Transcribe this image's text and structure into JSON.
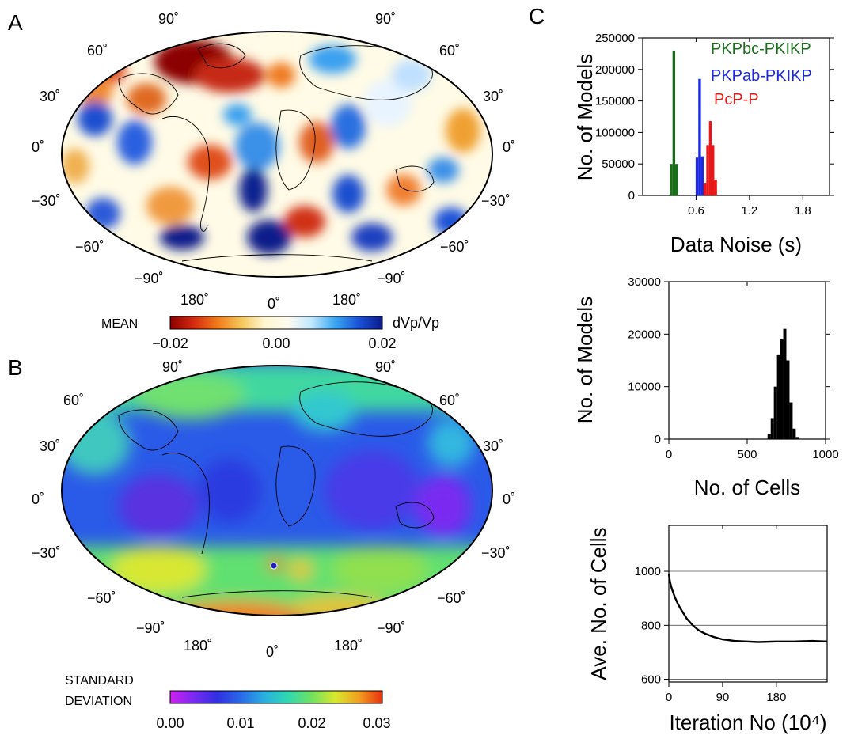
{
  "panels": {
    "a": {
      "letter": "A",
      "lat_labels_left": [
        "90˚",
        "60˚",
        "30˚",
        "0˚",
        "−30˚",
        "−60˚",
        "−90˚"
      ],
      "lat_labels_right": [
        "90˚",
        "60˚",
        "30˚",
        "0˚",
        "−30˚",
        "−60˚",
        "−90˚"
      ],
      "lon_labels": [
        "180˚",
        "0˚",
        "180˚"
      ],
      "colorbar": {
        "label": "MEAN",
        "unit": "dVp/Vp",
        "ticks": [
          "−0.02",
          "0.00",
          "0.02"
        ],
        "colors": [
          "#8b0000",
          "#d42a10",
          "#f07a1a",
          "#f5c55a",
          "#fff6d0",
          "#fffaf0",
          "#bfe8ff",
          "#3aa6f0",
          "#1a52d8",
          "#0a1a8a"
        ]
      }
    },
    "b": {
      "letter": "B",
      "lat_labels_left": [
        "90˚",
        "60˚",
        "30˚",
        "0˚",
        "−30˚",
        "−60˚",
        "−90˚"
      ],
      "lat_labels_right": [
        "90˚",
        "60˚",
        "30˚",
        "0˚",
        "−30˚",
        "−60˚",
        "−90˚"
      ],
      "lon_labels": [
        "180˚",
        "0˚",
        "180˚"
      ],
      "colorbar": {
        "label_line1": "STANDARD",
        "label_line2": "DEVIATION",
        "ticks": [
          "0.00",
          "0.01",
          "0.02",
          "0.03"
        ],
        "colors": [
          "#d020f0",
          "#7a2af0",
          "#3030e0",
          "#2a6ae8",
          "#2ab0e0",
          "#30d8b0",
          "#70e060",
          "#d8e830",
          "#f0a020",
          "#e83010"
        ]
      }
    },
    "c": {
      "letter": "C"
    }
  },
  "chart_data": [
    {
      "type": "bar",
      "panel": "C-top",
      "xlabel": "Data Noise (s)",
      "ylabel": "No. of Models",
      "xlim": [
        0,
        2.1
      ],
      "ylim": [
        0,
        250000
      ],
      "x_ticks": [
        "0.6",
        "1.2",
        "1.8"
      ],
      "x_tick_values": [
        0.6,
        1.2,
        1.8
      ],
      "y_ticks": [
        "0",
        "50000",
        "100000",
        "150000",
        "200000",
        "250000"
      ],
      "y_tick_values": [
        0,
        50000,
        100000,
        150000,
        200000,
        250000
      ],
      "series": [
        {
          "name": "PKPbc-PKIKP",
          "color": "#1a6e1a",
          "x": [
            0.32,
            0.35,
            0.38
          ],
          "values": [
            50000,
            230000,
            50000
          ]
        },
        {
          "name": "PKPab-PKIKP",
          "color": "#1a2ae0",
          "x": [
            0.61,
            0.64,
            0.67
          ],
          "values": [
            60000,
            185000,
            62000
          ]
        },
        {
          "name": "PcP-P",
          "color": "#e81818",
          "x": [
            0.7,
            0.73,
            0.76,
            0.79,
            0.82
          ],
          "values": [
            20000,
            80000,
            118000,
            80000,
            25000
          ]
        }
      ]
    },
    {
      "type": "bar",
      "panel": "C-middle",
      "xlabel": "No. of Cells",
      "ylabel": "No. of Models",
      "xlim": [
        0,
        1000
      ],
      "ylim": [
        0,
        30000
      ],
      "x_ticks": [
        "0",
        "500",
        "1000"
      ],
      "x_tick_values": [
        0,
        500,
        1000
      ],
      "y_ticks": [
        "0",
        "10000",
        "20000",
        "30000"
      ],
      "y_tick_values": [
        0,
        10000,
        20000,
        30000
      ],
      "series": [
        {
          "name": "",
          "color": "#000000",
          "x": [
            640,
            660,
            680,
            700,
            720,
            740,
            760,
            780,
            800,
            820
          ],
          "values": [
            1000,
            4000,
            10000,
            16000,
            19000,
            21000,
            15000,
            7000,
            2000,
            400
          ]
        }
      ]
    },
    {
      "type": "line",
      "panel": "C-bottom",
      "xlabel": "Iteration No (10⁴)",
      "ylabel": "Ave. No. of Cells",
      "xlim": [
        0,
        265
      ],
      "ylim": [
        590,
        1170
      ],
      "x_ticks": [
        "0",
        "90",
        "180"
      ],
      "x_tick_values": [
        0,
        90,
        180
      ],
      "y_ticks": [
        "600",
        "800",
        "1000"
      ],
      "y_tick_values": [
        600,
        800,
        1000
      ],
      "series": [
        {
          "name": "",
          "color": "#000000",
          "x": [
            0,
            2,
            5,
            10,
            15,
            20,
            30,
            40,
            50,
            60,
            75,
            90,
            110,
            130,
            150,
            180,
            210,
            240,
            265
          ],
          "y": [
            990,
            960,
            935,
            905,
            880,
            860,
            825,
            800,
            782,
            770,
            757,
            748,
            742,
            740,
            738,
            740,
            740,
            742,
            740
          ]
        }
      ]
    }
  ]
}
